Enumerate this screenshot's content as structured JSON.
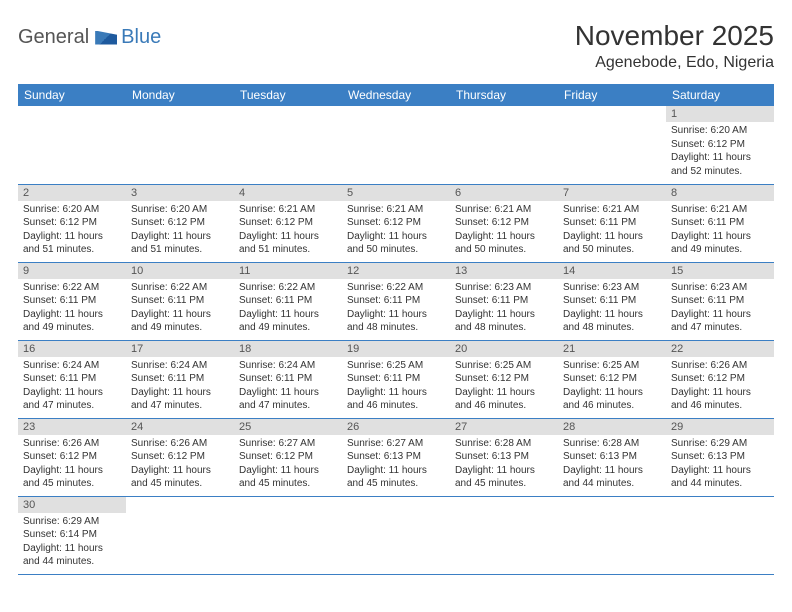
{
  "logo": {
    "general": "General",
    "blue": "Blue"
  },
  "title": "November 2025",
  "location": "Agenebode, Edo, Nigeria",
  "header_bg": "#3b7fc4",
  "header_text_color": "#ffffff",
  "daynum_bg": "#e0e0e0",
  "border_color": "#3b7fc4",
  "day_headers": [
    "Sunday",
    "Monday",
    "Tuesday",
    "Wednesday",
    "Thursday",
    "Friday",
    "Saturday"
  ],
  "weeks": [
    [
      null,
      null,
      null,
      null,
      null,
      null,
      {
        "n": "1",
        "sr": "6:20 AM",
        "ss": "6:12 PM",
        "dl": "11 hours and 52 minutes."
      }
    ],
    [
      {
        "n": "2",
        "sr": "6:20 AM",
        "ss": "6:12 PM",
        "dl": "11 hours and 51 minutes."
      },
      {
        "n": "3",
        "sr": "6:20 AM",
        "ss": "6:12 PM",
        "dl": "11 hours and 51 minutes."
      },
      {
        "n": "4",
        "sr": "6:21 AM",
        "ss": "6:12 PM",
        "dl": "11 hours and 51 minutes."
      },
      {
        "n": "5",
        "sr": "6:21 AM",
        "ss": "6:12 PM",
        "dl": "11 hours and 50 minutes."
      },
      {
        "n": "6",
        "sr": "6:21 AM",
        "ss": "6:12 PM",
        "dl": "11 hours and 50 minutes."
      },
      {
        "n": "7",
        "sr": "6:21 AM",
        "ss": "6:11 PM",
        "dl": "11 hours and 50 minutes."
      },
      {
        "n": "8",
        "sr": "6:21 AM",
        "ss": "6:11 PM",
        "dl": "11 hours and 49 minutes."
      }
    ],
    [
      {
        "n": "9",
        "sr": "6:22 AM",
        "ss": "6:11 PM",
        "dl": "11 hours and 49 minutes."
      },
      {
        "n": "10",
        "sr": "6:22 AM",
        "ss": "6:11 PM",
        "dl": "11 hours and 49 minutes."
      },
      {
        "n": "11",
        "sr": "6:22 AM",
        "ss": "6:11 PM",
        "dl": "11 hours and 49 minutes."
      },
      {
        "n": "12",
        "sr": "6:22 AM",
        "ss": "6:11 PM",
        "dl": "11 hours and 48 minutes."
      },
      {
        "n": "13",
        "sr": "6:23 AM",
        "ss": "6:11 PM",
        "dl": "11 hours and 48 minutes."
      },
      {
        "n": "14",
        "sr": "6:23 AM",
        "ss": "6:11 PM",
        "dl": "11 hours and 48 minutes."
      },
      {
        "n": "15",
        "sr": "6:23 AM",
        "ss": "6:11 PM",
        "dl": "11 hours and 47 minutes."
      }
    ],
    [
      {
        "n": "16",
        "sr": "6:24 AM",
        "ss": "6:11 PM",
        "dl": "11 hours and 47 minutes."
      },
      {
        "n": "17",
        "sr": "6:24 AM",
        "ss": "6:11 PM",
        "dl": "11 hours and 47 minutes."
      },
      {
        "n": "18",
        "sr": "6:24 AM",
        "ss": "6:11 PM",
        "dl": "11 hours and 47 minutes."
      },
      {
        "n": "19",
        "sr": "6:25 AM",
        "ss": "6:11 PM",
        "dl": "11 hours and 46 minutes."
      },
      {
        "n": "20",
        "sr": "6:25 AM",
        "ss": "6:12 PM",
        "dl": "11 hours and 46 minutes."
      },
      {
        "n": "21",
        "sr": "6:25 AM",
        "ss": "6:12 PM",
        "dl": "11 hours and 46 minutes."
      },
      {
        "n": "22",
        "sr": "6:26 AM",
        "ss": "6:12 PM",
        "dl": "11 hours and 46 minutes."
      }
    ],
    [
      {
        "n": "23",
        "sr": "6:26 AM",
        "ss": "6:12 PM",
        "dl": "11 hours and 45 minutes."
      },
      {
        "n": "24",
        "sr": "6:26 AM",
        "ss": "6:12 PM",
        "dl": "11 hours and 45 minutes."
      },
      {
        "n": "25",
        "sr": "6:27 AM",
        "ss": "6:12 PM",
        "dl": "11 hours and 45 minutes."
      },
      {
        "n": "26",
        "sr": "6:27 AM",
        "ss": "6:13 PM",
        "dl": "11 hours and 45 minutes."
      },
      {
        "n": "27",
        "sr": "6:28 AM",
        "ss": "6:13 PM",
        "dl": "11 hours and 45 minutes."
      },
      {
        "n": "28",
        "sr": "6:28 AM",
        "ss": "6:13 PM",
        "dl": "11 hours and 44 minutes."
      },
      {
        "n": "29",
        "sr": "6:29 AM",
        "ss": "6:13 PM",
        "dl": "11 hours and 44 minutes."
      }
    ],
    [
      {
        "n": "30",
        "sr": "6:29 AM",
        "ss": "6:14 PM",
        "dl": "11 hours and 44 minutes."
      },
      null,
      null,
      null,
      null,
      null,
      null
    ]
  ],
  "labels": {
    "sunrise": "Sunrise:",
    "sunset": "Sunset:",
    "daylight": "Daylight:"
  }
}
